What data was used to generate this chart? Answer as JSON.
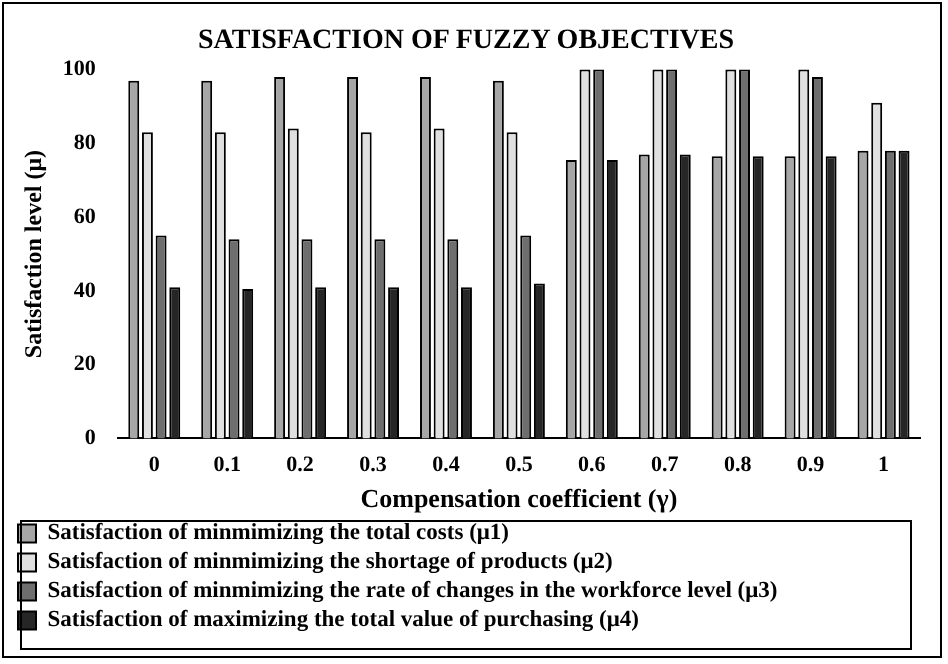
{
  "chart_data": {
    "type": "bar",
    "title": "SATISFACTION OF FUZZY OBJECTIVES",
    "xlabel": "Compensation coefficient (γ)",
    "ylabel": "Satisfaction level (μ)",
    "categories": [
      "0",
      "0.1",
      "0.2",
      "0.3",
      "0.4",
      "0.5",
      "0.6",
      "0.7",
      "0.8",
      "0.9",
      "1"
    ],
    "series": [
      {
        "name": "Satisfaction of minmimizing the total costs (μ1)",
        "color": "#a6a6a6",
        "values": [
          97,
          97,
          98,
          98,
          98,
          97,
          75.5,
          77,
          76.5,
          76.5,
          78
        ]
      },
      {
        "name": "Satisfaction of minmimizing the shortage of products (μ2)",
        "color": "#e0e0e0",
        "values": [
          83,
          83,
          84,
          83,
          84,
          83,
          100,
          100,
          100,
          100,
          91
        ]
      },
      {
        "name": "Satisfaction of minmimizing the rate of changes in the workforce level (μ3)",
        "color": "#6e6e6e",
        "values": [
          55,
          54,
          54,
          54,
          54,
          55,
          100,
          100,
          100,
          98,
          78
        ]
      },
      {
        "name": "Satisfaction of maximizing the total value of purchasing (μ4)",
        "color": "#262626",
        "values": [
          41,
          40.5,
          41,
          41,
          41,
          42,
          75.5,
          77,
          76.5,
          76.5,
          78
        ]
      }
    ],
    "ylim": [
      0,
      100
    ],
    "yticks": [
      0,
      20,
      40,
      60,
      80,
      100
    ],
    "grid": false,
    "legend": "bottom"
  }
}
